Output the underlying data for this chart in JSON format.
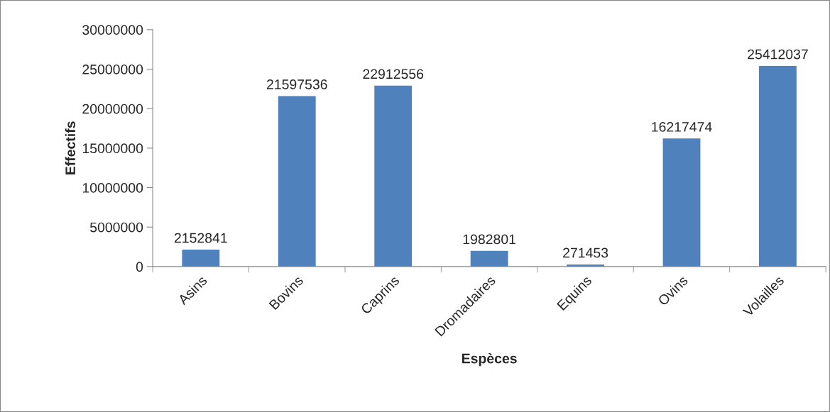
{
  "chart_data": {
    "type": "bar",
    "xlabel": "Espèces",
    "ylabel": "Effectifs",
    "categories": [
      "Asins",
      "Bovins",
      "Caprins",
      "Dromadaires",
      "Equins",
      "Ovins",
      "Volailles"
    ],
    "values": [
      2152841,
      21597536,
      22912556,
      1982801,
      271453,
      16217474,
      25412037
    ],
    "color": "#4f81bd",
    "ylim": [
      0,
      30000000
    ],
    "yticks": [
      0,
      5000000,
      10000000,
      15000000,
      20000000,
      25000000,
      30000000
    ],
    "grid": false,
    "legend": false,
    "data_labels": true
  }
}
